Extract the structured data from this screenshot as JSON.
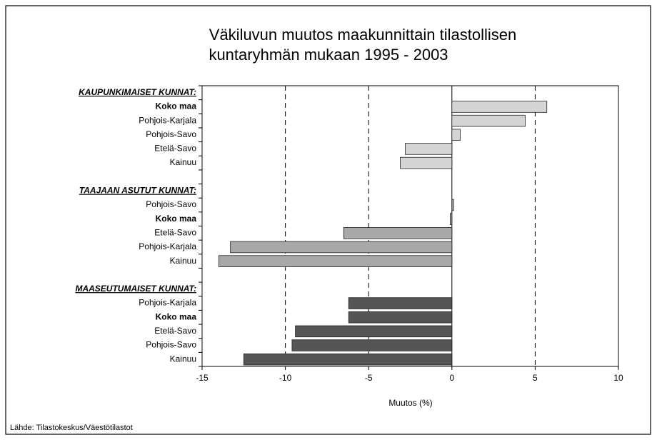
{
  "chart_data": {
    "type": "bar",
    "orientation": "horizontal",
    "title": [
      "Väkiluvun muutos maakunnittain tilastollisen",
      "kuntaryhmän mukaan 1995 - 2003"
    ],
    "xlabel": "Muutos (%)",
    "source": "Lähde: Tilastokeskus/Väestötilastot",
    "xlim": [
      -15,
      10
    ],
    "xticks": [
      -15,
      -10,
      -5,
      0,
      5,
      10
    ],
    "grid": true,
    "groups": [
      {
        "title": "KAUPUNKIMAISET KUNNAT:",
        "color": "#d4d4d4",
        "bold_index": 0,
        "categories": [
          "Koko maa",
          "Pohjois-Karjala",
          "Pohjois-Savo",
          "Etelä-Savo",
          "Kainuu"
        ],
        "values": [
          5.7,
          4.4,
          0.5,
          -2.8,
          -3.1
        ]
      },
      {
        "title": "TAAJAAN ASUTUT KUNNAT:",
        "color": "#a8a8a8",
        "bold_index": 1,
        "categories": [
          "Pohjois-Savo",
          "Koko maa",
          "Etelä-Savo",
          "Pohjois-Karjala",
          "Kainuu"
        ],
        "values": [
          0.1,
          -0.1,
          -6.5,
          -13.3,
          -14.0
        ]
      },
      {
        "title": "MAASEUTUMAISET KUNNAT:",
        "color": "#555555",
        "bold_index": 1,
        "categories": [
          "Pohjois-Karjala",
          "Koko maa",
          "Etelä-Savo",
          "Pohjois-Savo",
          "Kainuu"
        ],
        "values": [
          -6.2,
          -6.2,
          -9.4,
          -9.6,
          -12.5
        ]
      }
    ]
  }
}
